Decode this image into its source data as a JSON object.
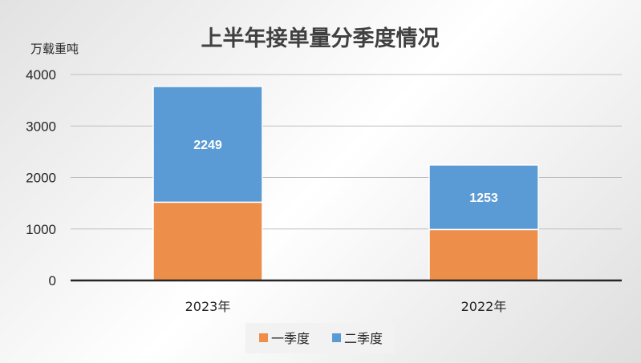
{
  "chart_data": {
    "type": "bar",
    "stacked": true,
    "title": "上半年接单量分季度情况",
    "ylabel": "万载重吨",
    "xlabel": "",
    "categories": [
      "2023年",
      "2022年"
    ],
    "ylim": [
      0,
      4000
    ],
    "yticks": [
      0,
      1000,
      2000,
      3000,
      4000
    ],
    "grid": true,
    "legend_position": "bottom",
    "series": [
      {
        "name": "一季度",
        "values": [
          1520,
          990
        ],
        "color": "#ed8e4b",
        "labels": [
          "",
          ""
        ]
      },
      {
        "name": "二季度",
        "values": [
          2249,
          1253
        ],
        "color": "#5b9bd5",
        "labels": [
          "2249",
          "1253"
        ]
      }
    ]
  }
}
